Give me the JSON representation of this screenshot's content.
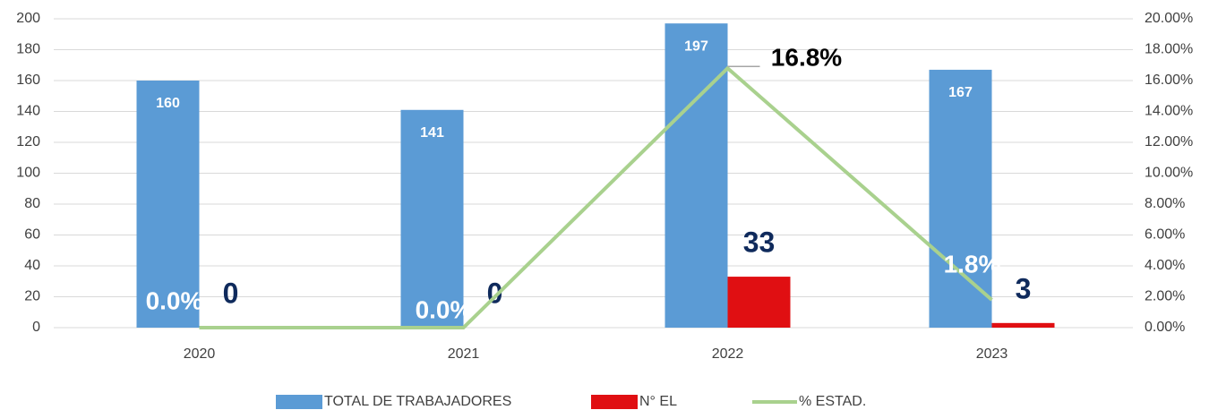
{
  "chart_data": {
    "type": "bar",
    "categories": [
      "2020",
      "2021",
      "2022",
      "2023"
    ],
    "series": [
      {
        "name": "TOTAL DE TRABAJADORES",
        "color": "#5b9bd5",
        "values": [
          160,
          141,
          197,
          167
        ]
      },
      {
        "name": "N° EL",
        "color": "#e00f12",
        "values": [
          0,
          0,
          33,
          3
        ]
      },
      {
        "name": "% ESTAD.",
        "color": "#a9d18e",
        "type": "line",
        "axis": "y2",
        "values": [
          0,
          0,
          16.8,
          1.8
        ],
        "value_labels": [
          "0.0%",
          "0.0%",
          "16.8%",
          "1.8%"
        ]
      }
    ],
    "ylim": [
      0,
      200
    ],
    "yticks": [
      0,
      20,
      40,
      60,
      80,
      100,
      120,
      140,
      160,
      180,
      200
    ],
    "y2lim": [
      0,
      20
    ],
    "y2ticks": [
      {
        "value": 0,
        "label": "0.00%"
      },
      {
        "value": 2,
        "label": "2.00%"
      },
      {
        "value": 4,
        "label": "4.00%"
      },
      {
        "value": 6,
        "label": "6.00%"
      },
      {
        "value": 8,
        "label": "8.00%"
      },
      {
        "value": 10,
        "label": "10.00%"
      },
      {
        "value": 12,
        "label": "12.00%"
      },
      {
        "value": 14,
        "label": "14.00%"
      },
      {
        "value": 16,
        "label": "16.00%"
      },
      {
        "value": 18,
        "label": "18.00%"
      },
      {
        "value": 20,
        "label": "20.00%"
      }
    ],
    "grid": true,
    "legend": "bottom"
  }
}
